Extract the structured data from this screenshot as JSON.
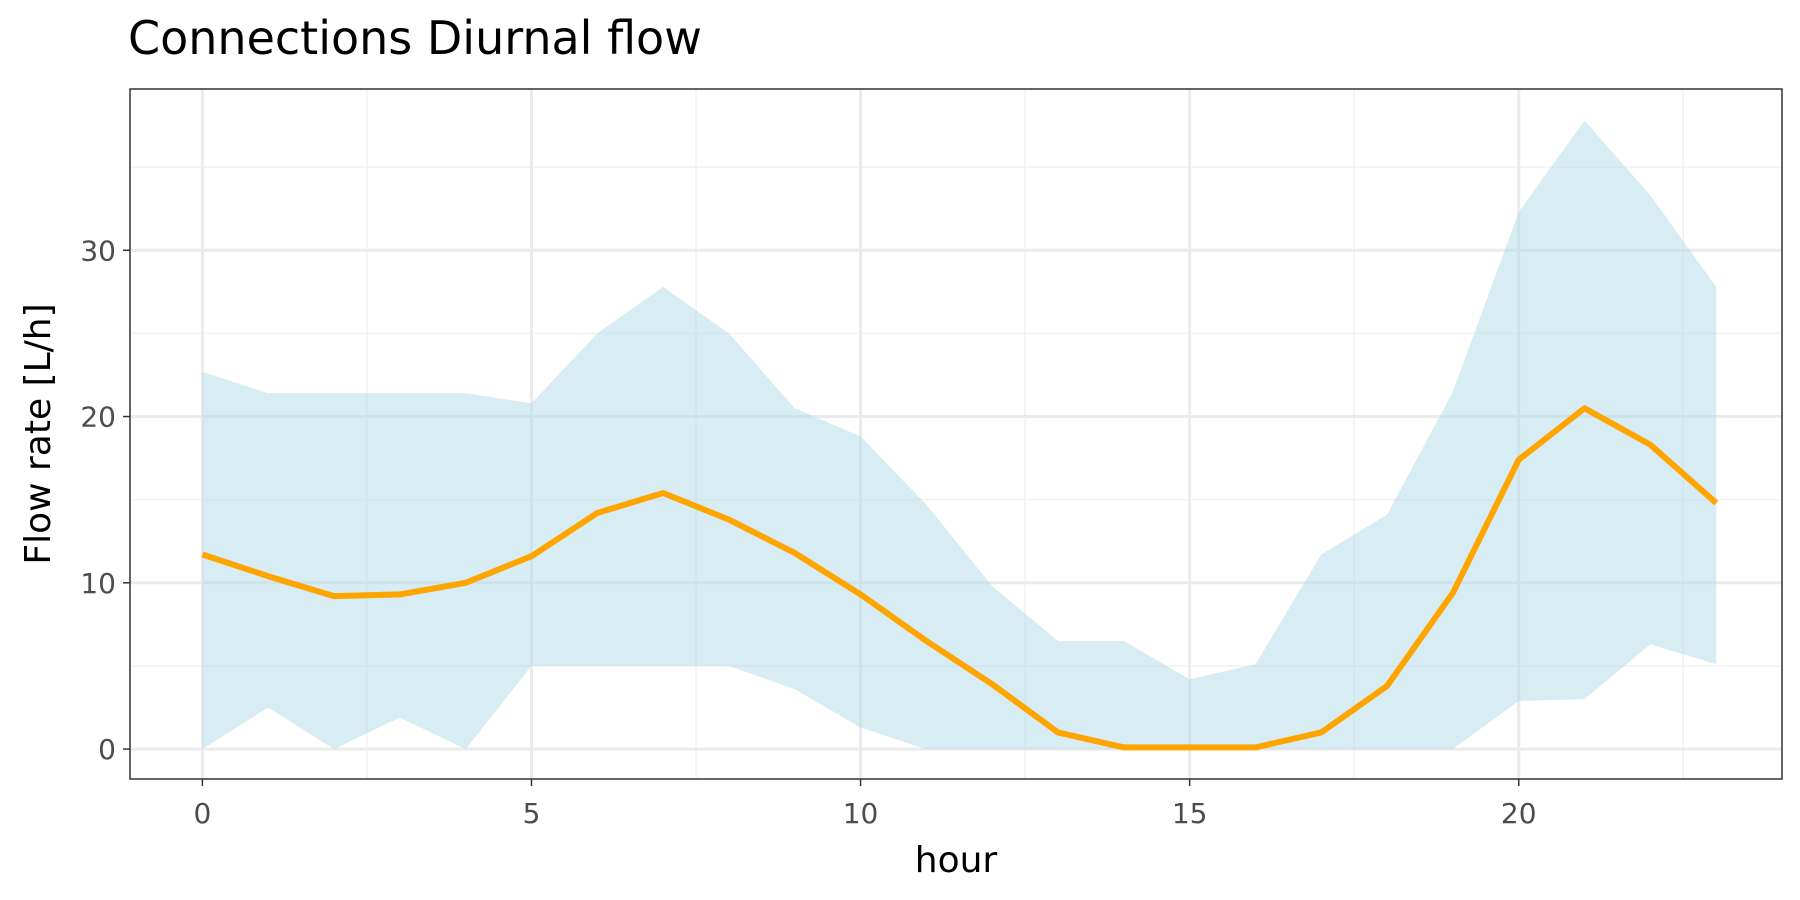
{
  "colors": {
    "band": "#add8e6",
    "line": "#ffa500",
    "grid_major": "#ebebeb",
    "grid_minor": "#f2f2f2",
    "panel_border": "#333333",
    "tick_text": "#4d4d4d"
  },
  "chart_data": {
    "type": "area",
    "title": "Connections Diurnal flow",
    "xlabel": "hour",
    "ylabel": "Flow rate [L/h]",
    "xlim": [
      -1.1,
      24.0
    ],
    "ylim": [
      -1.8,
      39.7
    ],
    "x_ticks": [
      0,
      5,
      10,
      15,
      20
    ],
    "x_minor_ticks": [
      2.5,
      7.5,
      12.5,
      17.5,
      22.5
    ],
    "y_ticks": [
      0,
      10,
      20,
      30
    ],
    "y_minor_ticks": [
      5,
      15,
      25,
      35
    ],
    "grid": true,
    "legend": "none",
    "x": [
      0,
      1,
      2,
      3,
      4,
      5,
      6,
      7,
      8,
      9,
      10,
      11,
      12,
      13,
      14,
      15,
      16,
      17,
      18,
      19,
      20,
      21,
      22,
      23
    ],
    "series": [
      {
        "type": "line",
        "values": [
          11.7,
          10.4,
          9.2,
          9.3,
          10.0,
          11.6,
          14.2,
          15.4,
          13.8,
          11.8,
          9.3,
          6.5,
          3.9,
          1.0,
          0.1,
          0.1,
          0.1,
          1.0,
          3.8,
          9.4,
          17.4,
          20.5,
          18.3,
          14.8
        ]
      },
      {
        "type": "band",
        "lower": [
          0.0,
          2.5,
          0.0,
          1.9,
          0.0,
          5.0,
          5.0,
          5.0,
          5.0,
          3.6,
          1.3,
          0.0,
          0.0,
          0.0,
          0.0,
          0.0,
          0.0,
          0.0,
          0.0,
          0.0,
          2.9,
          3.0,
          6.3,
          5.1
        ],
        "upper": [
          22.7,
          21.4,
          21.4,
          21.4,
          21.4,
          20.8,
          25.0,
          27.8,
          25.0,
          20.5,
          18.8,
          14.7,
          9.8,
          6.5,
          6.5,
          4.2,
          5.1,
          11.7,
          14.1,
          21.5,
          32.3,
          37.8,
          33.3,
          27.8
        ]
      }
    ]
  }
}
